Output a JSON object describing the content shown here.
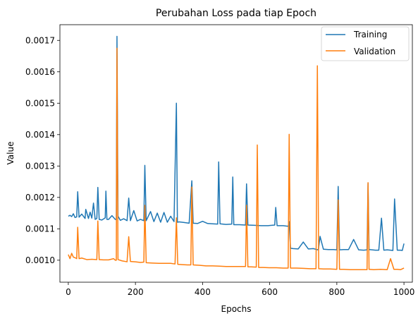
{
  "chart_data": {
    "type": "line",
    "title": "Perubahan Loss pada tiap Epoch",
    "xlabel": "Epochs",
    "ylabel": "Value",
    "xlim": [
      -25,
      1025
    ],
    "ylim": [
      0.00093,
      0.00175
    ],
    "xticks": [
      0,
      200,
      400,
      600,
      800,
      1000
    ],
    "yticks": [
      0.001,
      0.0011,
      0.0012,
      0.0013,
      0.0014,
      0.0015,
      0.0016,
      0.0017
    ],
    "ytick_labels": [
      "0.0010",
      "0.0011",
      "0.0012",
      "0.0013",
      "0.0014",
      "0.0015",
      "0.0016",
      "0.0017"
    ],
    "legend_position": "top-right",
    "grid": false,
    "series": [
      {
        "name": "Training",
        "color": "#1f77b4",
        "x": [
          0,
          5,
          10,
          15,
          20,
          25,
          28,
          32,
          40,
          50,
          52,
          60,
          65,
          70,
          75,
          80,
          85,
          88,
          92,
          100,
          110,
          112,
          115,
          120,
          130,
          140,
          143,
          145,
          148,
          155,
          165,
          175,
          180,
          185,
          195,
          205,
          215,
          225,
          228,
          232,
          245,
          255,
          265,
          275,
          285,
          295,
          305,
          315,
          322,
          325,
          330,
          345,
          360,
          368,
          372,
          385,
          400,
          415,
          430,
          445,
          448,
          452,
          470,
          487,
          490,
          493,
          510,
          528,
          531,
          535,
          555,
          575,
          595,
          615,
          618,
          622,
          640,
          655,
          658,
          662,
          670,
          685,
          700,
          715,
          730,
          740,
          745,
          750,
          760,
          775,
          790,
          800,
          804,
          808,
          820,
          835,
          850,
          865,
          880,
          890,
          893,
          896,
          905,
          915,
          925,
          933,
          940,
          950,
          960,
          967,
          972,
          980,
          990,
          995,
          1000
        ],
        "values": [
          0.00114,
          0.001143,
          0.001139,
          0.001148,
          0.001136,
          0.001138,
          0.001218,
          0.001137,
          0.001147,
          0.001133,
          0.001162,
          0.001133,
          0.001153,
          0.001134,
          0.001182,
          0.00113,
          0.001133,
          0.001232,
          0.00113,
          0.001128,
          0.001135,
          0.00122,
          0.00113,
          0.00113,
          0.001142,
          0.00113,
          0.00113,
          0.001713,
          0.00114,
          0.001127,
          0.001132,
          0.001126,
          0.001198,
          0.001126,
          0.001158,
          0.001125,
          0.00113,
          0.001126,
          0.001302,
          0.001126,
          0.001155,
          0.001123,
          0.00115,
          0.001121,
          0.001152,
          0.001121,
          0.00114,
          0.001123,
          0.0015,
          0.001121,
          0.001122,
          0.00112,
          0.001118,
          0.001253,
          0.001118,
          0.001117,
          0.001124,
          0.001117,
          0.001116,
          0.001115,
          0.001313,
          0.001116,
          0.001114,
          0.001115,
          0.001265,
          0.001113,
          0.001113,
          0.001112,
          0.001243,
          0.001112,
          0.001111,
          0.00111,
          0.00111,
          0.001112,
          0.001168,
          0.00111,
          0.00111,
          0.001108,
          0.001123,
          0.001038,
          0.001037,
          0.001036,
          0.001058,
          0.001036,
          0.001037,
          0.001034,
          0.001033,
          0.001076,
          0.001035,
          0.001034,
          0.001034,
          0.001033,
          0.001235,
          0.001033,
          0.001034,
          0.001034,
          0.001066,
          0.001033,
          0.001032,
          0.001033,
          0.001245,
          0.001034,
          0.001033,
          0.001032,
          0.001032,
          0.001134,
          0.001032,
          0.001033,
          0.001032,
          0.001031,
          0.001195,
          0.001032,
          0.001032,
          0.001031,
          0.001053
        ]
      },
      {
        "name": "Validation",
        "color": "#ff7f0e",
        "x": [
          0,
          5,
          10,
          15,
          20,
          25,
          28,
          32,
          40,
          55,
          70,
          85,
          88,
          92,
          105,
          120,
          135,
          140,
          143,
          145,
          148,
          160,
          175,
          180,
          185,
          200,
          215,
          225,
          228,
          232,
          250,
          270,
          290,
          305,
          318,
          322,
          326,
          340,
          355,
          365,
          368,
          372,
          390,
          410,
          430,
          450,
          470,
          490,
          510,
          528,
          531,
          535,
          545,
          560,
          563,
          567,
          580,
          600,
          620,
          640,
          655,
          658,
          662,
          680,
          700,
          720,
          738,
          742,
          746,
          760,
          780,
          800,
          804,
          808,
          820,
          840,
          860,
          880,
          890,
          893,
          896,
          910,
          930,
          950,
          960,
          970,
          980,
          990,
          1000
        ],
        "values": [
          0.001018,
          0.001005,
          0.001022,
          0.00101,
          0.001008,
          0.001005,
          0.001105,
          0.001005,
          0.001007,
          0.001002,
          0.001003,
          0.001002,
          0.001125,
          0.001002,
          0.001001,
          0.001001,
          0.001005,
          0.001,
          0.001,
          0.001675,
          0.001002,
          0.000998,
          0.000995,
          0.001075,
          0.000996,
          0.000995,
          0.000993,
          0.000994,
          0.001175,
          0.000992,
          0.000991,
          0.00099,
          0.00099,
          0.00099,
          0.000988,
          0.001135,
          0.000987,
          0.000986,
          0.000985,
          0.000985,
          0.001233,
          0.000985,
          0.000984,
          0.000982,
          0.000982,
          0.000981,
          0.00098,
          0.00098,
          0.00098,
          0.00098,
          0.001175,
          0.000979,
          0.000979,
          0.000978,
          0.001367,
          0.000977,
          0.000977,
          0.000976,
          0.000976,
          0.000975,
          0.000975,
          0.001401,
          0.000975,
          0.000975,
          0.000974,
          0.000973,
          0.000973,
          0.001619,
          0.000973,
          0.000972,
          0.000972,
          0.000971,
          0.001192,
          0.000971,
          0.000971,
          0.00097,
          0.00097,
          0.00097,
          0.00097,
          0.001247,
          0.000971,
          0.00097,
          0.000971,
          0.00097,
          0.001005,
          0.000971,
          0.000971,
          0.00097,
          0.000975
        ]
      }
    ]
  }
}
